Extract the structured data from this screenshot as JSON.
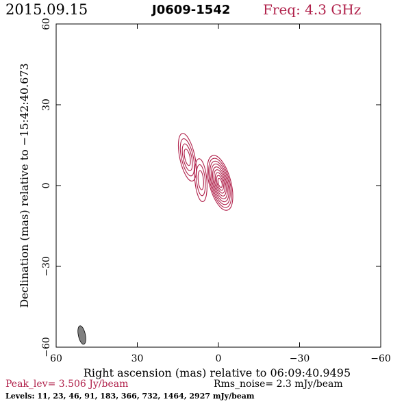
{
  "header": {
    "date": "2015.09.15",
    "source": "J0609-1542",
    "freq": "Freq: 4.3 GHz"
  },
  "footer": {
    "peak": "Peak_lev=  3.506 Jy/beam",
    "rms": "Rms_noise=  2.3 mJy/beam",
    "levels": "Levels:  11,  23,  46,  91, 183, 366, 732, 1464, 2927 mJy/beam"
  },
  "colors": {
    "contour": "#b0204a",
    "beam": "#808080",
    "accent": "#b0204a"
  },
  "chart_data": {
    "type": "contour",
    "xlabel": "Right ascension (mas) relative to 06:09:40.9495",
    "ylabel": "Declination (mas) relative to −15:42:40.673",
    "xlim": [
      60,
      -60
    ],
    "ylim": [
      -60,
      60
    ],
    "xticks": [
      60,
      30,
      0,
      -30,
      -60
    ],
    "yticks": [
      -60,
      -30,
      0,
      30,
      60
    ],
    "xtick_labels": [
      "60",
      "30",
      "0",
      "−30",
      "−60"
    ],
    "ytick_labels": [
      "−60",
      "−30",
      "0",
      "30",
      "60"
    ],
    "components": [
      {
        "x": -0.6,
        "y": 1.0,
        "levels": 9,
        "rx": 4.0,
        "ry": 10.5,
        "angle": -15
      },
      {
        "x": 6.5,
        "y": 2.0,
        "levels": 3,
        "rx": 2.2,
        "ry": 8.0,
        "angle": -5
      },
      {
        "x": 11.5,
        "y": 10.5,
        "levels": 4,
        "rx": 2.8,
        "ry": 9.0,
        "angle": -12
      }
    ],
    "beam": {
      "x": 50.5,
      "y": -55.5,
      "major": 7.0,
      "minor": 2.6,
      "angle": -12
    }
  }
}
